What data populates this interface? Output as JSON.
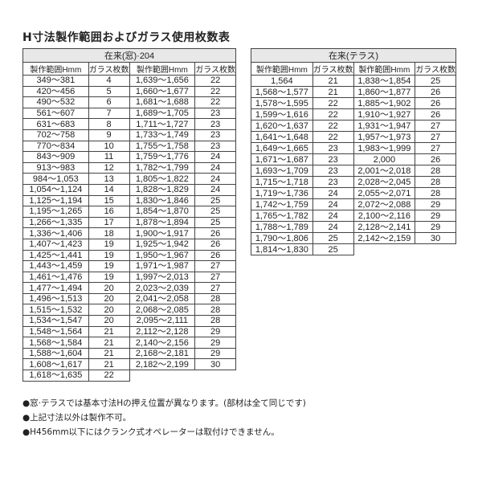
{
  "title": "H寸法製作範囲およびガラス使用枚数表",
  "tables": [
    {
      "caption": "在来(窓)·204",
      "headers": [
        "製作範囲Hmm",
        "ガラス枚数",
        "製作範囲Hmm",
        "ガラス枚数"
      ],
      "col_a": [
        [
          "349～381",
          "4"
        ],
        [
          "420～456",
          "5"
        ],
        [
          "490～532",
          "6"
        ],
        [
          "561～607",
          "7"
        ],
        [
          "631～683",
          "8"
        ],
        [
          "702～758",
          "9"
        ],
        [
          "770～834",
          "10"
        ],
        [
          "843～909",
          "11"
        ],
        [
          "913～983",
          "12"
        ],
        [
          "984～1,053",
          "13"
        ],
        [
          "1,054～1,124",
          "14"
        ],
        [
          "1,125～1,194",
          "15"
        ],
        [
          "1,195～1,265",
          "16"
        ],
        [
          "1,266～1,335",
          "17"
        ],
        [
          "1,336～1,406",
          "18"
        ],
        [
          "1,407～1,423",
          "19"
        ],
        [
          "1,425～1,441",
          "19"
        ],
        [
          "1,443～1,459",
          "19"
        ],
        [
          "1,461～1,476",
          "19"
        ],
        [
          "1,477～1,494",
          "20"
        ],
        [
          "1,496～1,513",
          "20"
        ],
        [
          "1,515～1,532",
          "20"
        ],
        [
          "1,534～1,547",
          "20"
        ],
        [
          "1,548～1,564",
          "21"
        ],
        [
          "1,568～1,584",
          "21"
        ],
        [
          "1,588～1,604",
          "21"
        ],
        [
          "1,608～1,617",
          "21"
        ],
        [
          "1,618～1,635",
          "22"
        ]
      ],
      "col_b": [
        [
          "1,639～1,656",
          "22"
        ],
        [
          "1,660～1,677",
          "22"
        ],
        [
          "1,681～1,688",
          "22"
        ],
        [
          "1,689～1,705",
          "23"
        ],
        [
          "1,711～1,727",
          "23"
        ],
        [
          "1,733～1,749",
          "23"
        ],
        [
          "1,755～1,758",
          "23"
        ],
        [
          "1,759～1,776",
          "24"
        ],
        [
          "1,782～1,799",
          "24"
        ],
        [
          "1,805～1,822",
          "24"
        ],
        [
          "1,828～1,829",
          "24"
        ],
        [
          "1,830～1,846",
          "25"
        ],
        [
          "1,854～1,870",
          "25"
        ],
        [
          "1,878～1,894",
          "25"
        ],
        [
          "1,900～1,917",
          "26"
        ],
        [
          "1,925～1,942",
          "26"
        ],
        [
          "1,950～1,967",
          "26"
        ],
        [
          "1,971～1,987",
          "27"
        ],
        [
          "1,997～2,013",
          "27"
        ],
        [
          "2,023～2,039",
          "27"
        ],
        [
          "2,041～2,058",
          "28"
        ],
        [
          "2,068～2,085",
          "28"
        ],
        [
          "2,095～2,111",
          "28"
        ],
        [
          "2,112～2,128",
          "29"
        ],
        [
          "2,140～2,156",
          "29"
        ],
        [
          "2,168～2,181",
          "29"
        ],
        [
          "2,182～2,199",
          "30"
        ]
      ]
    },
    {
      "caption": "在来(テラス)",
      "headers": [
        "製作範囲Hmm",
        "ガラス枚数",
        "製作範囲Hmm",
        "ガラス枚数"
      ],
      "col_a": [
        [
          "1,564",
          "21"
        ],
        [
          "1,568～1,577",
          "21"
        ],
        [
          "1,578～1,595",
          "22"
        ],
        [
          "1,599～1,616",
          "22"
        ],
        [
          "1,620～1,637",
          "22"
        ],
        [
          "1,641～1,648",
          "22"
        ],
        [
          "1,649～1,665",
          "23"
        ],
        [
          "1,671～1,687",
          "23"
        ],
        [
          "1,693～1,709",
          "23"
        ],
        [
          "1,715～1,718",
          "23"
        ],
        [
          "1,719～1,736",
          "24"
        ],
        [
          "1,742～1,759",
          "24"
        ],
        [
          "1,765～1,782",
          "24"
        ],
        [
          "1,788～1,789",
          "24"
        ],
        [
          "1,790～1,806",
          "25"
        ],
        [
          "1,814～1,830",
          "25"
        ]
      ],
      "col_b": [
        [
          "1,838～1,854",
          "25"
        ],
        [
          "1,860～1,877",
          "26"
        ],
        [
          "1,885～1,902",
          "26"
        ],
        [
          "1,910～1,927",
          "26"
        ],
        [
          "1,931～1,947",
          "27"
        ],
        [
          "1,957～1,973",
          "27"
        ],
        [
          "1,983～1,999",
          "27"
        ],
        [
          "2,000",
          "26"
        ],
        [
          "2,001～2,018",
          "28"
        ],
        [
          "2,028～2,045",
          "28"
        ],
        [
          "2,055～2,071",
          "28"
        ],
        [
          "2,072～2,088",
          "29"
        ],
        [
          "2,100～2,116",
          "29"
        ],
        [
          "2,128～2,141",
          "29"
        ],
        [
          "2,142～2,159",
          "30"
        ]
      ]
    }
  ],
  "notes": [
    "●窓·テラスでは基本寸法Hの押え位置が異なります。(部材は全て同じです)",
    "●上記寸法以外は製作不可。",
    "●H456mm以下にはクランク式オペレーターは取付けできません。"
  ]
}
